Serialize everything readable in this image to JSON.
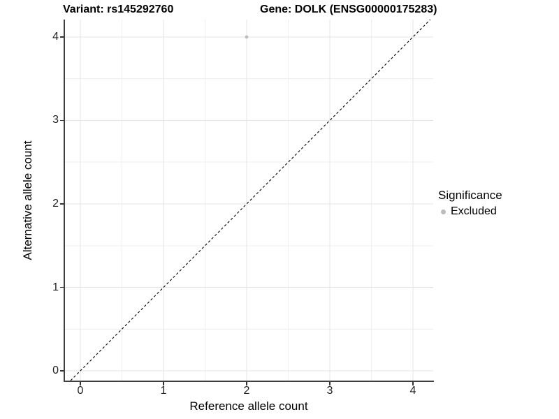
{
  "chart_data": {
    "type": "scatter",
    "title_left": "Variant: rs145292760",
    "title_right": "Gene: DOLK (ENSG00000175283)",
    "xlabel": "Reference allele count",
    "ylabel": "Alternative allele count",
    "x_ticks": [
      0,
      1,
      2,
      3,
      4
    ],
    "y_ticks": [
      0,
      1,
      2,
      3,
      4
    ],
    "x_minor_ticks": [
      0.5,
      1.5,
      2.5,
      3.5
    ],
    "y_minor_ticks": [
      0.5,
      1.5,
      2.5,
      3.5
    ],
    "xlim": [
      -0.193,
      4.244
    ],
    "ylim": [
      -0.117,
      4.209
    ],
    "grid": true,
    "legend": {
      "position": "right",
      "title": "Significance",
      "entries": [
        {
          "label": "Excluded",
          "color": "#bcbcbc"
        }
      ]
    },
    "series": [
      {
        "name": "Excluded",
        "color": "#bcbcbc",
        "point_radius": 2.4,
        "points": [
          {
            "x": 2,
            "y": 4
          }
        ]
      }
    ],
    "identity_line": {
      "equation": "y = x",
      "style": "dashed",
      "color": "#000000"
    },
    "colors": {
      "background": "#ffffff",
      "grid_major": "#e4e4e4",
      "grid_minor": "#efefef",
      "axis_line": "#3f3f3f",
      "tick_mark": "#333333",
      "text": "#000000"
    }
  }
}
